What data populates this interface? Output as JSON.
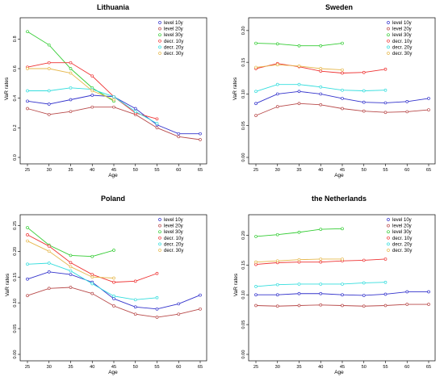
{
  "chart_data": [
    {
      "type": "line",
      "title": "Lithuania",
      "xlabel": "Age",
      "ylabel": "VaR rates",
      "xlim": [
        25,
        65
      ],
      "ylim": [
        0,
        0.9
      ],
      "yticks": [
        "0.0",
        "0.2",
        "0.4",
        "0.6",
        "0.8"
      ],
      "xticks": [
        "25",
        "30",
        "35",
        "40",
        "45",
        "50",
        "55",
        "60",
        "65"
      ],
      "legend": "top-right",
      "grid": false,
      "series": [
        {
          "name": "level 10y",
          "color": "#3333cc",
          "x": [
            25,
            30,
            35,
            40,
            45,
            50,
            55,
            60,
            65
          ],
          "y": [
            0.38,
            0.36,
            0.39,
            0.42,
            0.41,
            0.33,
            0.22,
            0.16,
            0.16
          ]
        },
        {
          "name": "level 20y",
          "color": "#b84a4a",
          "x": [
            25,
            30,
            35,
            40,
            45,
            50,
            55,
            60,
            65
          ],
          "y": [
            0.33,
            0.29,
            0.31,
            0.34,
            0.34,
            0.29,
            0.2,
            0.14,
            0.12
          ]
        },
        {
          "name": "level 30y",
          "color": "#33cc33",
          "x": [
            25,
            30,
            35,
            40,
            45
          ],
          "y": [
            0.85,
            0.76,
            0.6,
            0.47,
            0.38
          ]
        },
        {
          "name": "decr. 10y",
          "color": "#ee3333",
          "x": [
            25,
            30,
            35,
            40,
            45,
            50,
            55
          ],
          "y": [
            0.61,
            0.64,
            0.64,
            0.55,
            0.41,
            0.3,
            0.26
          ]
        },
        {
          "name": "decr. 20y",
          "color": "#33dddd",
          "x": [
            25,
            30,
            35,
            40,
            45,
            50,
            55
          ],
          "y": [
            0.45,
            0.45,
            0.47,
            0.46,
            0.41,
            0.31,
            0.23
          ]
        },
        {
          "name": "decr. 30y",
          "color": "#e6b84d",
          "x": [
            25,
            30,
            35,
            40,
            45
          ],
          "y": [
            0.6,
            0.6,
            0.57,
            0.45,
            0.39
          ]
        }
      ]
    },
    {
      "type": "line",
      "title": "Sweden",
      "xlabel": "Age",
      "ylabel": "VaR rates",
      "xlim": [
        25,
        65
      ],
      "ylim": [
        0,
        0.21
      ],
      "yticks": [
        "0.00",
        "0.05",
        "0.10",
        "0.15",
        "0.20"
      ],
      "xticks": [
        "25",
        "30",
        "35",
        "40",
        "45",
        "50",
        "55",
        "60",
        "65"
      ],
      "legend": "top-right",
      "grid": false,
      "series": [
        {
          "name": "level 10y",
          "color": "#3333cc",
          "x": [
            25,
            30,
            35,
            40,
            45,
            50,
            55,
            60,
            65
          ],
          "y": [
            0.085,
            0.1,
            0.104,
            0.1,
            0.093,
            0.087,
            0.086,
            0.088,
            0.093
          ]
        },
        {
          "name": "level 20y",
          "color": "#b84a4a",
          "x": [
            25,
            30,
            35,
            40,
            45,
            50,
            55,
            60,
            65
          ],
          "y": [
            0.066,
            0.08,
            0.085,
            0.083,
            0.077,
            0.073,
            0.071,
            0.072,
            0.075
          ]
        },
        {
          "name": "level 30y",
          "color": "#33cc33",
          "x": [
            25,
            30,
            35,
            40,
            45
          ],
          "y": [
            0.18,
            0.179,
            0.176,
            0.176,
            0.18
          ]
        },
        {
          "name": "decr. 10y",
          "color": "#ee3333",
          "x": [
            25,
            30,
            35,
            40,
            45,
            50,
            55
          ],
          "y": [
            0.14,
            0.148,
            0.143,
            0.136,
            0.133,
            0.134,
            0.139
          ]
        },
        {
          "name": "decr. 20y",
          "color": "#33dddd",
          "x": [
            25,
            30,
            35,
            40,
            45,
            50,
            55
          ],
          "y": [
            0.104,
            0.115,
            0.115,
            0.111,
            0.106,
            0.105,
            0.106
          ]
        },
        {
          "name": "decr. 30y",
          "color": "#e6b84d",
          "x": [
            25,
            30,
            35,
            40,
            45
          ],
          "y": [
            0.142,
            0.146,
            0.144,
            0.14,
            0.138
          ]
        }
      ]
    },
    {
      "type": "line",
      "title": "Poland",
      "xlabel": "Age",
      "ylabel": "VaR rates",
      "xlim": [
        25,
        65
      ],
      "ylim": [
        0,
        0.26
      ],
      "yticks": [
        "0.00",
        "0.05",
        "0.10",
        "0.15",
        "0.20",
        "0.25"
      ],
      "xticks": [
        "25",
        "30",
        "35",
        "40",
        "45",
        "50",
        "55",
        "60",
        "65"
      ],
      "legend": "top-right",
      "grid": false,
      "series": [
        {
          "name": "level 10y",
          "color": "#3333cc",
          "x": [
            25,
            30,
            35,
            40,
            45,
            50,
            55,
            60,
            65
          ],
          "y": [
            0.146,
            0.16,
            0.155,
            0.14,
            0.108,
            0.092,
            0.088,
            0.098,
            0.115
          ]
        },
        {
          "name": "level 20y",
          "color": "#b84a4a",
          "x": [
            25,
            30,
            35,
            40,
            45,
            50,
            55,
            60,
            65
          ],
          "y": [
            0.114,
            0.128,
            0.13,
            0.118,
            0.094,
            0.078,
            0.072,
            0.078,
            0.088
          ]
        },
        {
          "name": "level 30y",
          "color": "#33cc33",
          "x": [
            25,
            30,
            35,
            40,
            45
          ],
          "y": [
            0.246,
            0.212,
            0.192,
            0.19,
            0.202
          ]
        },
        {
          "name": "decr. 10y",
          "color": "#ee3333",
          "x": [
            25,
            30,
            35,
            40,
            45,
            50,
            55
          ],
          "y": [
            0.232,
            0.21,
            0.178,
            0.155,
            0.14,
            0.142,
            0.157
          ]
        },
        {
          "name": "decr. 20y",
          "color": "#33dddd",
          "x": [
            25,
            30,
            35,
            40,
            45,
            50,
            55
          ],
          "y": [
            0.175,
            0.177,
            0.162,
            0.137,
            0.113,
            0.106,
            0.11
          ]
        },
        {
          "name": "decr. 30y",
          "color": "#e6b84d",
          "x": [
            25,
            30,
            35,
            40,
            45
          ],
          "y": [
            0.22,
            0.2,
            0.17,
            0.15,
            0.148
          ]
        }
      ]
    },
    {
      "type": "line",
      "title": "the Netherlands",
      "xlabel": "Age",
      "ylabel": "VaR rates",
      "xlim": [
        25,
        65
      ],
      "ylim": [
        0,
        0.225
      ],
      "yticks": [
        "0.00",
        "0.05",
        "0.10",
        "0.15",
        "0.20"
      ],
      "xticks": [
        "25",
        "30",
        "35",
        "40",
        "45",
        "50",
        "55",
        "60",
        "65"
      ],
      "legend": "top-right",
      "grid": false,
      "series": [
        {
          "name": "level 10y",
          "color": "#3333cc",
          "x": [
            25,
            30,
            35,
            40,
            45,
            50,
            55,
            60,
            65
          ],
          "y": [
            0.1,
            0.1,
            0.102,
            0.102,
            0.1,
            0.099,
            0.101,
            0.105,
            0.105
          ]
        },
        {
          "name": "level 20y",
          "color": "#b84a4a",
          "x": [
            25,
            30,
            35,
            40,
            45,
            50,
            55,
            60,
            65
          ],
          "y": [
            0.082,
            0.081,
            0.082,
            0.083,
            0.082,
            0.081,
            0.082,
            0.084,
            0.084
          ]
        },
        {
          "name": "level 30y",
          "color": "#33cc33",
          "x": [
            25,
            30,
            35,
            40,
            45
          ],
          "y": [
            0.198,
            0.201,
            0.205,
            0.21,
            0.211
          ]
        },
        {
          "name": "decr. 10y",
          "color": "#ee3333",
          "x": [
            25,
            30,
            35,
            40,
            45,
            50,
            55
          ],
          "y": [
            0.151,
            0.154,
            0.155,
            0.155,
            0.157,
            0.158,
            0.16
          ]
        },
        {
          "name": "decr. 20y",
          "color": "#33dddd",
          "x": [
            25,
            30,
            35,
            40,
            45,
            50,
            55
          ],
          "y": [
            0.114,
            0.117,
            0.118,
            0.118,
            0.118,
            0.12,
            0.121
          ]
        },
        {
          "name": "decr. 30y",
          "color": "#e6b84d",
          "x": [
            25,
            30,
            35,
            40,
            45
          ],
          "y": [
            0.155,
            0.157,
            0.159,
            0.16,
            0.16
          ]
        }
      ]
    }
  ]
}
